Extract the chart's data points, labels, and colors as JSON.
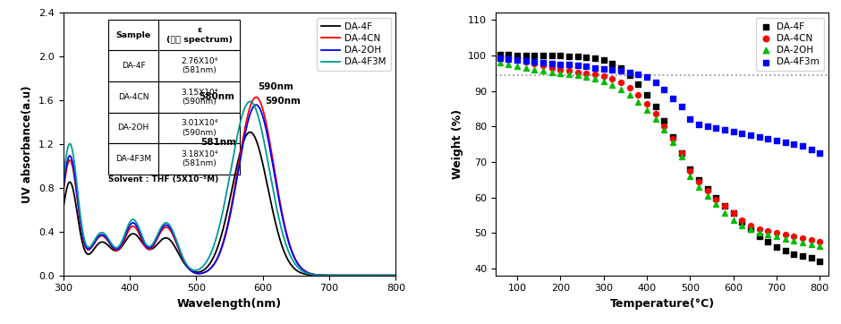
{
  "uv_xlim": [
    300,
    800
  ],
  "uv_ylim": [
    0.0,
    2.4
  ],
  "uv_xlabel": "Wavelength(nm)",
  "uv_ylabel": "UV absorbance(a.u)",
  "uv_xticks": [
    300,
    400,
    500,
    600,
    700,
    800
  ],
  "uv_yticks": [
    0.0,
    0.4,
    0.8,
    1.2,
    1.6,
    2.0,
    2.4
  ],
  "tga_xlim": [
    50,
    820
  ],
  "tga_ylim": [
    38,
    112
  ],
  "tga_xlabel": "Temperature(°C)",
  "tga_ylabel": "Weight (%)",
  "tga_xticks": [
    100,
    200,
    300,
    400,
    500,
    600,
    700,
    800
  ],
  "tga_yticks": [
    40,
    50,
    60,
    70,
    80,
    90,
    100,
    110
  ],
  "legend_uv": [
    "DA-4F",
    "DA-4CN",
    "DA-2OH",
    "DA-4F3M"
  ],
  "legend_tga": [
    "DA-4F",
    "DA-4CN",
    "DA-2OH",
    "DA-4F3m"
  ],
  "colors_uv": [
    "#000000",
    "#ff0000",
    "#0000ff",
    "#009999"
  ],
  "colors_tga": [
    "#000000",
    "#ff0000",
    "#00bb00",
    "#0000ff"
  ],
  "table_data": [
    [
      "Sample",
      "ε\n(기준 spectrum)"
    ],
    [
      "DA-4F",
      "2.76X10⁴\n(581nm)"
    ],
    [
      "DA-4CN",
      "3.15X10⁴\n(590nm)"
    ],
    [
      "DA-2OH",
      "3.01X10⁴\n(590nm)"
    ],
    [
      "DA-4F3M",
      "3.18X10⁴\n(581nm)"
    ]
  ],
  "solvent_text": "Solvent : THF (5X10⁻⁵M)",
  "dotted_line_y": 94.5,
  "dotted_line_color": "#999999"
}
